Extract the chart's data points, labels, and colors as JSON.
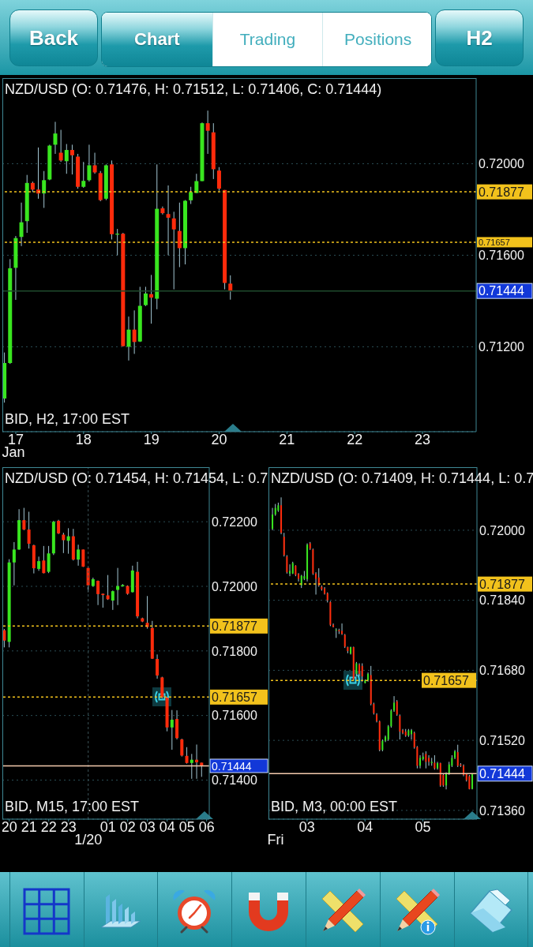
{
  "chart_data": [
    {
      "type": "other",
      "annotations": [
        "Back",
        "Chart",
        "Trading",
        "Positions",
        "H2"
      ]
    },
    {
      "type": "candlestick",
      "title": "NZD/USD (O: 0.71476, H: 0.71512, L: 0.71406, C: 0.71444)",
      "subtitle": "BID, H2, 17:00 EST",
      "xlabel": "Jan",
      "x": [
        "--01-16T20:00",
        "--01-16T22:00",
        "--01-17T00:00",
        "--01-17T02:00",
        "--01-17T04:00",
        "--01-17T06:00",
        "--01-17T08:00",
        "--01-17T10:00",
        "--01-17T12:00",
        "--01-17T14:00",
        "--01-17T16:00",
        "--01-17T18:00",
        "--01-17T20:00",
        "--01-17T22:00",
        "--01-18T00:00",
        "--01-18T02:00",
        "--01-18T04:00",
        "--01-18T06:00",
        "--01-18T08:00",
        "--01-18T10:00",
        "--01-18T12:00",
        "--01-18T14:00",
        "--01-18T16:00",
        "--01-18T18:00",
        "--01-18T20:00",
        "--01-18T22:00",
        "--01-19T00:00",
        "--01-19T02:00",
        "--01-19T04:00",
        "--01-19T06:00",
        "--01-19T08:00",
        "--01-19T10:00",
        "--01-19T12:00",
        "--01-19T14:00",
        "--01-19T16:00",
        "--01-19T18:00",
        "--01-19T20:00",
        "--01-19T22:00",
        "--01-20T00:00",
        "--01-20T02:00",
        "--01-20T04:00"
      ],
      "ohlc": [
        [
          0.70974,
          0.71175,
          0.70956,
          0.71129
        ],
        [
          0.71129,
          0.71583,
          0.71125,
          0.71543
        ],
        [
          0.71545,
          0.71684,
          0.71405,
          0.71675
        ],
        [
          0.7168,
          0.7183,
          0.7164,
          0.71744
        ],
        [
          0.71749,
          0.71951,
          0.71698,
          0.71916
        ],
        [
          0.71916,
          0.71922,
          0.71876,
          0.71887
        ],
        [
          0.71887,
          0.72071,
          0.71847,
          0.7187
        ],
        [
          0.7187,
          0.71968,
          0.71807,
          0.71928
        ],
        [
          0.71931,
          0.72083,
          0.71928,
          0.72079
        ],
        [
          0.72083,
          0.72183,
          0.72043,
          0.72132
        ],
        [
          0.72048,
          0.72148,
          0.72008,
          0.72014
        ],
        [
          0.72011,
          0.72086,
          0.71956,
          0.7206
        ],
        [
          0.7206,
          0.72083,
          0.71953,
          0.72037
        ],
        [
          0.72031,
          0.72043,
          0.71891,
          0.71899
        ],
        [
          0.71899,
          0.72008,
          0.71895,
          0.71925
        ],
        [
          0.71928,
          0.72083,
          0.71922,
          0.71993
        ],
        [
          0.71993,
          0.72048,
          0.71956,
          0.71962
        ],
        [
          0.71959,
          0.71968,
          0.71836,
          0.71841
        ],
        [
          0.71847,
          0.71997,
          0.71841,
          0.71993
        ],
        [
          0.71997,
          0.72014,
          0.71669,
          0.71692
        ],
        [
          0.7169,
          0.71715,
          0.716,
          0.71694
        ],
        [
          0.71694,
          0.71698,
          0.71201,
          0.71203
        ],
        [
          0.712,
          0.71332,
          0.7114,
          0.71275
        ],
        [
          0.71275,
          0.71359,
          0.71169,
          0.71221
        ],
        [
          0.71223,
          0.71462,
          0.71221,
          0.71379
        ],
        [
          0.71382,
          0.71462,
          0.71378,
          0.71433
        ],
        [
          0.7143,
          0.71514,
          0.71301,
          0.71415
        ],
        [
          0.7141,
          0.71997,
          0.71364,
          0.71803
        ],
        [
          0.71805,
          0.71813,
          0.71778,
          0.71784
        ],
        [
          0.7178,
          0.71905,
          0.716,
          0.71764
        ],
        [
          0.71761,
          0.7179,
          0.71451,
          0.71713
        ],
        [
          0.71706,
          0.7183,
          0.71548,
          0.71631
        ],
        [
          0.71631,
          0.71841,
          0.7156,
          0.71838
        ],
        [
          0.7184,
          0.71899,
          0.71824,
          0.71876
        ],
        [
          0.71872,
          0.71956,
          0.71872,
          0.71924
        ],
        [
          0.71924,
          0.7218,
          0.71924,
          0.72177
        ],
        [
          0.72177,
          0.72232,
          0.72043,
          0.72144
        ],
        [
          0.72137,
          0.72177,
          0.71933,
          0.71976
        ],
        [
          0.7197,
          0.71985,
          0.71882,
          0.71891
        ],
        [
          0.71885,
          0.71885,
          0.71451,
          0.71479
        ],
        [
          0.71476,
          0.71512,
          0.71406,
          0.71444
        ]
      ],
      "colors": [
        "#39e61f",
        "#39e61f",
        "#39e61f",
        "#39e61f",
        "#39e61f",
        "#ff2b0b",
        "#ff2b0b",
        "#39e61f",
        "#39e61f",
        "#39e61f",
        "#ff2b0b",
        "#39e61f",
        "#ff2b0b",
        "#ff2b0b",
        "#39e61f",
        "#39e61f",
        "#ff2b0b",
        "#ff2b0b",
        "#39e61f",
        "#ff2b0b",
        "#39e61f",
        "#ff2b0b",
        "#39e61f",
        "#ff2b0b",
        "#39e61f",
        "#39e61f",
        "#ff2b0b",
        "#39e61f",
        "#ff2b0b",
        "#ff2b0b",
        "#ff2b0b",
        "#ff2b0b",
        "#39e61f",
        "#39e61f",
        "#39e61f",
        "#39e61f",
        "#ff2b0b",
        "#ff2b0b",
        "#ff2b0b",
        "#ff2b0b",
        "#ff2b0b"
      ],
      "xlim": [
        "--01-16T19:15",
        "--01-23T19:00"
      ],
      "xticks": [
        {
          "value": "--01-17",
          "label": "17"
        },
        {
          "value": "--01-18",
          "label": "18"
        },
        {
          "value": "--01-19",
          "label": "19"
        },
        {
          "value": "--01-20",
          "label": "20"
        },
        {
          "value": "--01-21",
          "label": "21"
        },
        {
          "value": "--01-22",
          "label": "22"
        },
        {
          "value": "--01-23",
          "label": "23"
        }
      ],
      "ylim": [
        0.70829,
        0.72374
      ],
      "yticks": [
        {
          "value": 0.712,
          "label": "0.71200"
        },
        {
          "value": 0.716,
          "label": "0.71600"
        },
        {
          "value": 0.72,
          "label": "0.72000"
        }
      ],
      "grid": "y",
      "ref_lines": [
        {
          "axis": "y",
          "value": 0.71877,
          "label": "0.71877",
          "color": "#f2c21c",
          "line_style": "dotted"
        },
        {
          "axis": "y",
          "value": 0.71657,
          "label": "0.71657",
          "color": "#f2c21c",
          "line_style": "dotted"
        },
        {
          "axis": "y",
          "value": 0.71444,
          "label": "0.71444",
          "color": "#1f4a2c",
          "line_style": "solid"
        }
      ]
    },
    {
      "type": "candlestick",
      "title": "NZD/USD (O: 0.71454, H: 0.71454, L: 0.7",
      "subtitle": "BID, M15, 17:00 EST",
      "xlabel": "1/20",
      "x": [
        "--01-19T19:45",
        "--01-19T20:00",
        "--01-19T20:15",
        "--01-19T20:30",
        "--01-19T20:45",
        "--01-19T21:00",
        "--01-19T21:15",
        "--01-19T21:30",
        "--01-19T21:45",
        "--01-19T22:00",
        "--01-19T22:15",
        "--01-19T22:30",
        "--01-19T22:45",
        "--01-19T23:00",
        "--01-19T23:15",
        "--01-19T23:30",
        "--01-19T23:45",
        "--01-20T00:00",
        "--01-20T00:15",
        "--01-20T00:30",
        "--01-20T00:45",
        "--01-20T01:00",
        "--01-20T01:15",
        "--01-20T01:30",
        "--01-20T01:45",
        "--01-20T02:00",
        "--01-20T02:15",
        "--01-20T02:30",
        "--01-20T02:45",
        "--01-20T03:00",
        "--01-20T03:15",
        "--01-20T03:30",
        "--01-20T03:45",
        "--01-20T04:00",
        "--01-20T04:15",
        "--01-20T04:30",
        "--01-20T04:45",
        "--01-20T05:00",
        "--01-20T05:15",
        "--01-20T05:30",
        "--01-20T05:45"
      ],
      "ohlc": [
        [
          0.71864,
          0.71868,
          0.71811,
          0.71832
        ],
        [
          0.71828,
          0.72084,
          0.71811,
          0.72074
        ],
        [
          0.72074,
          0.72137,
          0.72003,
          0.72114
        ],
        [
          0.72114,
          0.72239,
          0.72113,
          0.72205
        ],
        [
          0.72205,
          0.72243,
          0.72174,
          0.72176
        ],
        [
          0.72176,
          0.72231,
          0.72117,
          0.72132
        ],
        [
          0.72127,
          0.72129,
          0.7204,
          0.72056
        ],
        [
          0.72054,
          0.72092,
          0.72048,
          0.72078
        ],
        [
          0.7208,
          0.72125,
          0.7204,
          0.72041
        ],
        [
          0.72045,
          0.72125,
          0.72041,
          0.72102
        ],
        [
          0.72102,
          0.72203,
          0.72097,
          0.722
        ],
        [
          0.72203,
          0.72206,
          0.72162,
          0.72164
        ],
        [
          0.7216,
          0.72166,
          0.72103,
          0.72143
        ],
        [
          0.72141,
          0.7218,
          0.72101,
          0.72155
        ],
        [
          0.72155,
          0.72178,
          0.7208,
          0.72083
        ],
        [
          0.72083,
          0.72129,
          0.72064,
          0.72114
        ],
        [
          0.72114,
          0.72114,
          0.7206,
          0.72061
        ],
        [
          0.72057,
          0.7206,
          0.71982,
          0.72003
        ],
        [
          0.72001,
          0.72027,
          0.71999,
          0.72022
        ],
        [
          0.72017,
          0.72018,
          0.71942,
          0.71976
        ],
        [
          0.71977,
          0.71978,
          0.71934,
          0.71973
        ],
        [
          0.71972,
          0.72035,
          0.71958,
          0.7196
        ],
        [
          0.71956,
          0.71987,
          0.71927,
          0.71985
        ],
        [
          0.71989,
          0.72057,
          0.71942,
          0.72001
        ],
        [
          0.72,
          0.72007,
          0.71999,
          0.72004
        ],
        [
          0.72001,
          0.72003,
          0.71974,
          0.71977
        ],
        [
          0.71982,
          0.72064,
          0.71981,
          0.72049
        ],
        [
          0.72045,
          0.72076,
          0.71901,
          0.71907
        ],
        [
          0.71901,
          0.71903,
          0.71889,
          0.71891
        ],
        [
          0.71887,
          0.7197,
          0.71869,
          0.71874
        ],
        [
          0.71871,
          0.71893,
          0.71775,
          0.71776
        ],
        [
          0.71775,
          0.71789,
          0.71714,
          0.71724
        ],
        [
          0.71718,
          0.7172,
          0.71653,
          0.71657
        ],
        [
          0.71655,
          0.71657,
          0.71551,
          0.71563
        ],
        [
          0.71563,
          0.71617,
          0.71494,
          0.71587
        ],
        [
          0.71589,
          0.71616,
          0.71526,
          0.7153
        ],
        [
          0.71526,
          0.71528,
          0.71473,
          0.71476
        ],
        [
          0.71475,
          0.71502,
          0.71451,
          0.71453
        ],
        [
          0.71453,
          0.71481,
          0.71404,
          0.71463
        ],
        [
          0.71463,
          0.7151,
          0.71404,
          0.71455
        ],
        [
          0.71454,
          0.71454,
          0.7141,
          0.71444
        ]
      ],
      "colors": [
        "#ff2b0b",
        "#39e61f",
        "#39e61f",
        "#39e61f",
        "#ff2b0b",
        "#ff2b0b",
        "#ff2b0b",
        "#39e61f",
        "#ff2b0b",
        "#39e61f",
        "#39e61f",
        "#ff2b0b",
        "#ff2b0b",
        "#39e61f",
        "#ff2b0b",
        "#39e61f",
        "#ff2b0b",
        "#ff2b0b",
        "#39e61f",
        "#ff2b0b",
        "#ff2b0b",
        "#ff2b0b",
        "#39e61f",
        "#39e61f",
        "#39e61f",
        "#ff2b0b",
        "#39e61f",
        "#ff2b0b",
        "#ff2b0b",
        "#ff2b0b",
        "#ff2b0b",
        "#ff2b0b",
        "#ff2b0b",
        "#ff2b0b",
        "#39e61f",
        "#ff2b0b",
        "#ff2b0b",
        "#ff2b0b",
        "#39e61f",
        "#ff2b0b",
        "#ff2b0b"
      ],
      "xlim": [
        "--01-19T19:39",
        "--01-20T06:08"
      ],
      "xticks": [
        {
          "value": "--01-19T20:00",
          "label": "20"
        },
        {
          "value": "--01-19T21:00",
          "label": "21"
        },
        {
          "value": "--01-19T22:00",
          "label": "22"
        },
        {
          "value": "--01-19T23:00",
          "label": "23"
        },
        {
          "value": "--01-20T01:00",
          "label": "01"
        },
        {
          "value": "--01-20T02:00",
          "label": "02"
        },
        {
          "value": "--01-20T03:00",
          "label": "03"
        },
        {
          "value": "--01-20T04:00",
          "label": "04"
        },
        {
          "value": "--01-20T05:00",
          "label": "05"
        },
        {
          "value": "--01-20T06:00",
          "label": "06"
        }
      ],
      "ylim": [
        0.71279,
        0.72369
      ],
      "yticks": [
        {
          "value": 0.714,
          "label": "0.71400"
        },
        {
          "value": 0.716,
          "label": "0.71600"
        },
        {
          "value": 0.718,
          "label": "0.71800"
        },
        {
          "value": 0.72,
          "label": "0.72000"
        },
        {
          "value": 0.722,
          "label": "0.72200"
        }
      ],
      "grid": "y",
      "ref_lines": [
        {
          "axis": "y",
          "value": 0.71877,
          "label": "0.71877",
          "color": "#f2c21c",
          "line_style": "dotted"
        },
        {
          "axis": "y",
          "value": 0.71657,
          "label": "0.71657",
          "color": "#f2c21c",
          "line_style": "dotted"
        },
        {
          "axis": "y",
          "value": 0.71444,
          "label": "0.71444",
          "color": "#f3c9ad",
          "line_style": "solid"
        },
        {
          "axis": "x",
          "value": "--01-20T00:00",
          "color": "#3c5458",
          "line_style": "dotted"
        }
      ]
    },
    {
      "type": "candlestick",
      "title": "NZD/USD (O: 0.71409, H: 0.71444, L: 0.7",
      "subtitle": "BID, M3, 00:00 EST",
      "xlabel": "Fri",
      "x": [
        "--01-20T02:24",
        "--01-20T02:27",
        "--01-20T02:30",
        "--01-20T02:33",
        "--01-20T02:36",
        "--01-20T02:39",
        "--01-20T02:42",
        "--01-20T02:45",
        "--01-20T02:48",
        "--01-20T02:51",
        "--01-20T02:54",
        "--01-20T02:57",
        "--01-20T03:00",
        "--01-20T03:03",
        "--01-20T03:06",
        "--01-20T03:09",
        "--01-20T03:12",
        "--01-20T03:15",
        "--01-20T03:18",
        "--01-20T03:21",
        "--01-20T03:24",
        "--01-20T03:27",
        "--01-20T03:30",
        "--01-20T03:33",
        "--01-20T03:36",
        "--01-20T03:39",
        "--01-20T03:42",
        "--01-20T03:45",
        "--01-20T03:48",
        "--01-20T03:51",
        "--01-20T03:54",
        "--01-20T03:57",
        "--01-20T04:00",
        "--01-20T04:03",
        "--01-20T04:06",
        "--01-20T04:09",
        "--01-20T04:12",
        "--01-20T04:15",
        "--01-20T04:18",
        "--01-20T04:21",
        "--01-20T04:24",
        "--01-20T04:27",
        "--01-20T04:30",
        "--01-20T04:33",
        "--01-20T04:36",
        "--01-20T04:39",
        "--01-20T04:42",
        "--01-20T04:45",
        "--01-20T04:48",
        "--01-20T04:51",
        "--01-20T04:54",
        "--01-20T04:57",
        "--01-20T05:00",
        "--01-20T05:03",
        "--01-20T05:06",
        "--01-20T05:09",
        "--01-20T05:12",
        "--01-20T05:15",
        "--01-20T05:18",
        "--01-20T05:21",
        "--01-20T05:24",
        "--01-20T05:27",
        "--01-20T05:30",
        "--01-20T05:33",
        "--01-20T05:36",
        "--01-20T05:39",
        "--01-20T05:42",
        "--01-20T05:45",
        "--01-20T05:48",
        "--01-20T05:51"
      ],
      "ohlc": [
        [
          0.72003,
          0.72051,
          0.72,
          0.72036
        ],
        [
          0.72036,
          0.7206,
          0.72033,
          0.72051
        ],
        [
          0.72045,
          0.72063,
          0.72042,
          0.72057
        ],
        [
          0.72057,
          0.72075,
          0.71991,
          0.71994
        ],
        [
          0.71985,
          0.71994,
          0.7194,
          0.71943
        ],
        [
          0.7194,
          0.71943,
          0.71901,
          0.71904
        ],
        [
          0.71901,
          0.71922,
          0.71895,
          0.71907
        ],
        [
          0.71901,
          0.71928,
          0.719,
          0.71925
        ],
        [
          0.71919,
          0.7192,
          0.71895,
          0.71898
        ],
        [
          0.719,
          0.71902,
          0.71883,
          0.71889
        ],
        [
          0.71874,
          0.71898,
          0.71868,
          0.71896
        ],
        [
          0.71889,
          0.71907,
          0.71886,
          0.71895
        ],
        [
          0.71888,
          0.7197,
          0.71883,
          0.71967
        ],
        [
          0.7197,
          0.71973,
          0.71955,
          0.71958
        ],
        [
          0.71956,
          0.71958,
          0.71898,
          0.71901
        ],
        [
          0.71901,
          0.71904,
          0.71853,
          0.71889
        ],
        [
          0.71892,
          0.71913,
          0.71871,
          0.71874
        ],
        [
          0.71871,
          0.71874,
          0.71862,
          0.71865
        ],
        [
          0.71867,
          0.7187,
          0.71853,
          0.71855
        ],
        [
          0.71856,
          0.71858,
          0.71835,
          0.7184
        ],
        [
          0.71836,
          0.71838,
          0.71781,
          0.71784
        ],
        [
          0.71784,
          0.71787,
          0.71778,
          0.71779
        ],
        [
          0.71772,
          0.71776,
          0.71754,
          0.71773
        ],
        [
          0.71772,
          0.71775,
          0.71763,
          0.71769
        ],
        [
          0.7177,
          0.71787,
          0.71761,
          0.71763
        ],
        [
          0.71761,
          0.71763,
          0.71731,
          0.71734
        ],
        [
          0.71733,
          0.71734,
          0.71719,
          0.71724
        ],
        [
          0.71718,
          0.71734,
          0.71716,
          0.71733
        ],
        [
          0.71733,
          0.71734,
          0.71657,
          0.7166
        ],
        [
          0.71672,
          0.71699,
          0.71666,
          0.71696
        ],
        [
          0.71693,
          0.71696,
          0.71666,
          0.71672
        ],
        [
          0.7169,
          0.71696,
          0.71654,
          0.71666
        ],
        [
          0.71651,
          0.71659,
          0.7165,
          0.71657
        ],
        [
          0.71657,
          0.71675,
          0.71654,
          0.71672
        ],
        [
          0.71669,
          0.7169,
          0.716,
          0.71603
        ],
        [
          0.71603,
          0.71606,
          0.71579,
          0.71582
        ],
        [
          0.71579,
          0.71582,
          0.71561,
          0.71564
        ],
        [
          0.71563,
          0.71565,
          0.71495,
          0.71498
        ],
        [
          0.71498,
          0.71522,
          0.71495,
          0.71519
        ],
        [
          0.71519,
          0.71531,
          0.71516,
          0.71528
        ],
        [
          0.71522,
          0.71555,
          0.71519,
          0.71552
        ],
        [
          0.71552,
          0.71591,
          0.71549,
          0.71588
        ],
        [
          0.71588,
          0.71621,
          0.71585,
          0.71606
        ],
        [
          0.71609,
          0.71612,
          0.71576,
          0.71579
        ],
        [
          0.71576,
          0.71579,
          0.71522,
          0.7154
        ],
        [
          0.71543,
          0.71546,
          0.71534,
          0.71537
        ],
        [
          0.7154,
          0.71546,
          0.71528,
          0.71531
        ],
        [
          0.71531,
          0.71546,
          0.71528,
          0.71543
        ],
        [
          0.71534,
          0.71546,
          0.71522,
          0.71543
        ],
        [
          0.71537,
          0.7154,
          0.71501,
          0.71504
        ],
        [
          0.71505,
          0.71507,
          0.71456,
          0.71462
        ],
        [
          0.71462,
          0.71486,
          0.71456,
          0.7148
        ],
        [
          0.71477,
          0.71492,
          0.71474,
          0.71483
        ],
        [
          0.71489,
          0.71495,
          0.71456,
          0.71471
        ],
        [
          0.7148,
          0.71486,
          0.71462,
          0.71471
        ],
        [
          0.71468,
          0.7148,
          0.71462,
          0.71471
        ],
        [
          0.71469,
          0.71486,
          0.71453,
          0.71456
        ],
        [
          0.71456,
          0.71471,
          0.71453,
          0.71468
        ],
        [
          0.71468,
          0.71469,
          0.71414,
          0.71417
        ],
        [
          0.71441,
          0.71444,
          0.71414,
          0.71417
        ],
        [
          0.71417,
          0.71447,
          0.71408,
          0.71444
        ],
        [
          0.71444,
          0.71471,
          0.71441,
          0.71465
        ],
        [
          0.71462,
          0.71486,
          0.71459,
          0.7148
        ],
        [
          0.7148,
          0.71498,
          0.71477,
          0.71495
        ],
        [
          0.71493,
          0.7151,
          0.71459,
          0.71462
        ],
        [
          0.71465,
          0.71468,
          0.71459,
          0.71462
        ],
        [
          0.71462,
          0.71465,
          0.71438,
          0.71441
        ],
        [
          0.71443,
          0.71444,
          0.71426,
          0.71429
        ],
        [
          0.71438,
          0.71441,
          0.71408,
          0.71409
        ],
        [
          0.71409,
          0.71444,
          0.71408,
          0.71444
        ]
      ],
      "colors": [
        "#39e61f",
        "#39e61f",
        "#39e61f",
        "#ff2b0b",
        "#ff2b0b",
        "#ff2b0b",
        "#39e61f",
        "#39e61f",
        "#ff2b0b",
        "#ff2b0b",
        "#39e61f",
        "#39e61f",
        "#39e61f",
        "#ff2b0b",
        "#ff2b0b",
        "#ff2b0b",
        "#ff2b0b",
        "#ff2b0b",
        "#ff2b0b",
        "#ff2b0b",
        "#ff2b0b",
        "#ff2b0b",
        "#39e61f",
        "#ff2b0b",
        "#ff2b0b",
        "#ff2b0b",
        "#ff2b0b",
        "#39e61f",
        "#ff2b0b",
        "#39e61f",
        "#ff2b0b",
        "#ff2b0b",
        "#39e61f",
        "#39e61f",
        "#ff2b0b",
        "#ff2b0b",
        "#ff2b0b",
        "#ff2b0b",
        "#39e61f",
        "#39e61f",
        "#39e61f",
        "#39e61f",
        "#39e61f",
        "#ff2b0b",
        "#ff2b0b",
        "#ff2b0b",
        "#ff2b0b",
        "#39e61f",
        "#39e61f",
        "#ff2b0b",
        "#ff2b0b",
        "#39e61f",
        "#39e61f",
        "#ff2b0b",
        "#ff2b0b",
        "#39e61f",
        "#ff2b0b",
        "#39e61f",
        "#ff2b0b",
        "#ff2b0b",
        "#39e61f",
        "#39e61f",
        "#39e61f",
        "#39e61f",
        "#ff2b0b",
        "#ff2b0b",
        "#ff2b0b",
        "#ff2b0b",
        "#ff2b0b",
        "#39e61f"
      ],
      "xlim": [
        "--01-20T02:20",
        "--01-20T05:56"
      ],
      "xticks": [
        {
          "value": "--01-20T03:00",
          "label": "03"
        },
        {
          "value": "--01-20T04:00",
          "label": "04"
        },
        {
          "value": "--01-20T05:00",
          "label": "05"
        }
      ],
      "ylim": [
        0.7134,
        0.72144
      ],
      "yticks": [
        {
          "value": 0.7136,
          "label": "0.71360"
        },
        {
          "value": 0.7152,
          "label": "0.71520"
        },
        {
          "value": 0.7168,
          "label": "0.71680"
        },
        {
          "value": 0.7184,
          "label": "0.71840"
        },
        {
          "value": 0.72,
          "label": "0.72000"
        }
      ],
      "grid": "y",
      "ref_lines": [
        {
          "axis": "y",
          "value": 0.71877,
          "label": "0.71877",
          "color": "#f2c21c",
          "line_style": "dotted"
        },
        {
          "axis": "y",
          "value": 0.71657,
          "label": "0.71657",
          "color": "#f2c21c",
          "line_style": "dotted"
        },
        {
          "axis": "y",
          "value": 0.71444,
          "label": "0.71444",
          "color": "#f3c9ad",
          "line_style": "solid"
        }
      ]
    }
  ]
}
